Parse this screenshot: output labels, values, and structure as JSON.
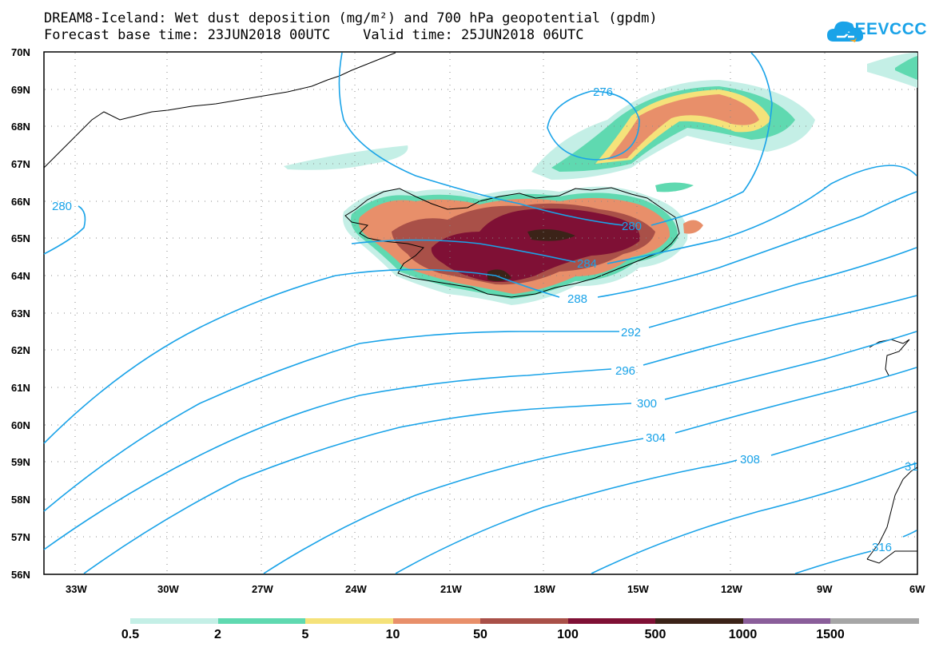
{
  "title": {
    "line1": "DREAM8-Iceland: Wet dust deposition (mg/m²) and 700 hPa geopotential (gpdm)",
    "line2": "Forecast base time: 23JUN2018 00UTC    Valid time: 25JUN2018 06UTC"
  },
  "logo": {
    "text": "SEEVCCC",
    "icon": "cloud-icon"
  },
  "map": {
    "lat_labels": [
      "70N",
      "69N",
      "68N",
      "67N",
      "66N",
      "65N",
      "64N",
      "63N",
      "62N",
      "61N",
      "60N",
      "59N",
      "58N",
      "57N",
      "56N"
    ],
    "lon_labels": [
      "33W",
      "30W",
      "27W",
      "24W",
      "21W",
      "18W",
      "15W",
      "12W",
      "9W",
      "6W"
    ],
    "contour_labels": [
      "276",
      "280",
      "280",
      "284",
      "288",
      "292",
      "296",
      "300",
      "304",
      "308",
      "31",
      "316"
    ],
    "contour_color": "#1aa3e8"
  },
  "legend": {
    "labels": [
      "0.5",
      "2",
      "5",
      "10",
      "50",
      "100",
      "500",
      "1000",
      "1500"
    ],
    "colors": [
      "#c4efe6",
      "#5fd9b0",
      "#f5e27a",
      "#e88f6a",
      "#a95048",
      "#7f1035",
      "#3b2318",
      "#8a5e9a",
      "#a6a6a6"
    ]
  }
}
